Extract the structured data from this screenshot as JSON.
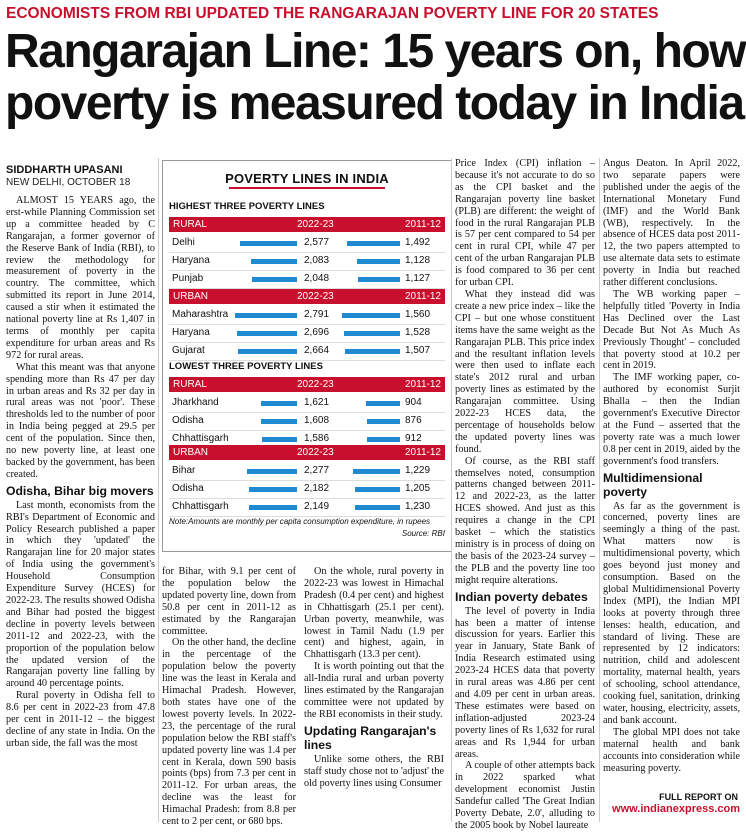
{
  "kicker": "ECONOMISTS FROM RBI UPDATED THE RANGARAJAN POVERTY LINE FOR 20 STATES",
  "headline": [
    "Rangarajan Line: 15 years on, how",
    "poverty is measured today in India"
  ],
  "byline": {
    "author": "SIDDHARTH UPASANI",
    "dateline": "NEW DELHI, OCTOBER 18"
  },
  "table": {
    "title": "POVERTY LINES IN INDIA",
    "highest_label": "HIGHEST THREE POVERTY LINES",
    "lowest_label": "LOWEST THREE POVERTY LINES",
    "col_a": "2022-23",
    "col_b": "2011-12",
    "rural": "RURAL",
    "urban": "URBAN",
    "highest_rural": [
      {
        "state": "Delhi",
        "a": "2,577",
        "b": "1,492",
        "av": 2577
      },
      {
        "state": "Haryana",
        "a": "2,083",
        "b": "1,128",
        "av": 2083
      },
      {
        "state": "Punjab",
        "a": "2,048",
        "b": "1,127",
        "av": 2048
      }
    ],
    "highest_urban": [
      {
        "state": "Maharashtra",
        "a": "2,791",
        "b": "1,560",
        "av": 2791
      },
      {
        "state": "Haryana",
        "a": "2,696",
        "b": "1,528",
        "av": 2696
      },
      {
        "state": "Gujarat",
        "a": "2,664",
        "b": "1,507",
        "av": 2664
      }
    ],
    "lowest_rural": [
      {
        "state": "Jharkhand",
        "a": "1,621",
        "b": "904",
        "av": 1621
      },
      {
        "state": "Odisha",
        "a": "1,608",
        "b": "876",
        "av": 1608
      },
      {
        "state": "Chhattisgarh",
        "a": "1,586",
        "b": "912",
        "av": 1586
      }
    ],
    "lowest_urban": [
      {
        "state": "Bihar",
        "a": "2,277",
        "b": "1,229",
        "av": 2277
      },
      {
        "state": "Odisha",
        "a": "2,182",
        "b": "1,205",
        "av": 2182
      },
      {
        "state": "Chhattisgarh",
        "a": "2,149",
        "b": "1,230",
        "av": 2149
      }
    ],
    "note": "Note:Amounts are monthly per capita consumption expenditure, in rupees",
    "source": "Source: RBI"
  },
  "col1": {
    "p1": "ALMOST 15 YEARS ago, the erst-while Planning Commission set up a committee headed by C Rangarajan, a former governor of the Reserve Bank of India (RBI), to review the methodology for measurement of poverty in the country. The committee, which submitted its report in June 2014, caused a stir when it estimated the national poverty line at Rs 1,407 in terms of monthly per capita expenditure for urban areas and Rs 972 for rural areas.",
    "p2": "What this meant was that anyone spending more than Rs 47 per day in urban areas and Rs 32 per day in rural areas was not 'poor'. These thresholds led to the number of poor in India being pegged at 29.5 per cent of the population. Since then, no new poverty line, at least one backed by the government, has been created.",
    "h1": "Odisha, Bihar big movers",
    "p3": "Last month, economists from the RBI's Department of Economic and Policy Research published a paper in which they 'updated' the Rangarajan line for 20 major states of India using the government's Household Consumption Expenditure Survey (HCES) for 2022-23. The results showed Odisha and Bihar had posted the biggest decline in poverty levels between 2011-12 and 2022-23, with the proportion of the population below the updated version of the Rangarajan poverty line falling by around 40 percentage points.",
    "p4": "Rural poverty in Odisha fell to 8.6 per cent in 2022-23 from 47.8 per cent in 2011-12 – the biggest decline of any state in India. On the urban side, the fall was the most"
  },
  "col2": {
    "p1": "for Bihar, with 9.1 per cent of the population below the updated poverty line, down from 50.8 per cent in 2011-12 as estimated by the Rangarajan committee.",
    "p2": "On the other hand, the decline in the percentage of the population below the poverty line was the least in Kerala and Himachal Pradesh. However, both states have one of the lowest poverty levels. In 2022-23, the percentage of the rural population below the RBI staff's updated poverty line was 1.4 per cent in Kerala, down 590 basis points (bps) from 7.3 per cent in 2011-12. For urban areas, the decline was the least for Himachal Pradesh: from 8.8 per cent to 2 per cent, or 680 bps."
  },
  "col3": {
    "p1": "On the whole, rural poverty in 2022-23 was lowest in Himachal Pradesh (0.4 per cent) and highest in Chhattisgarh (25.1 per cent). Urban poverty, meanwhile, was lowest in Tamil Nadu (1.9 per cent) and highest, again, in Chhattisgarh (13.3 per cent).",
    "p2": "It is worth pointing out that the all-India rural and urban poverty lines estimated by the Rangarajan committee were not updated by the RBI economists in their study.",
    "h1": "Updating Rangarajan's lines",
    "p3": "Unlike some others, the RBI staff study chose not to 'adjust' the old poverty lines using Consumer"
  },
  "col4": {
    "p1": "Price Index (CPI) inflation – because it's not accurate to do so as the CPI basket and the Rangarajan poverty line basket (PLB) are different: the weight of food in the rural Rangarajan PLB is 57 per cent compared to 54 per cent in rural CPI, while 47 per cent of the urban Rangarajan PLB is food compared to 36 per cent for urban CPI.",
    "p2": "What they instead did was create a new price index – like the CPI – but one whose constituent items have the same weight as the Rangarajan PLB. This price index and the resultant inflation levels were then used to inflate each state's 2012 rural and urban poverty lines as estimated by the Rangarajan committee. Using 2022-23 HCES data, the percentage of households below the updated poverty lines was found.",
    "p3": "Of course, as the RBI staff themselves noted, consumption patterns changed between 2011-12 and 2022-23, as the latter HCES showed. And just as this requires a change in the CPI basket – which the statistics ministry is in process of doing on the basis of the 2023-24 survey – the PLB and the poverty line too might require alterations.",
    "h1": "Indian poverty debates",
    "p4": "The level of poverty in India has been a matter of intense discussion for years. Earlier this year in January, State Bank of India Research estimated using 2023-24 HCES data that poverty in rural areas was 4.86 per cent and 4.09 per cent in urban areas. These estimates were based on inflation-adjusted 2023-24 poverty lines of Rs 1,632 for rural areas and Rs 1,944 for urban areas.",
    "p5": "A couple of other attempts back in 2022 sparked what development economist Justin Sandefur called 'The Great Indian Poverty Debate, 2.0', alluding to the 2005 book by Nobel laureate"
  },
  "col5": {
    "p1": "Angus Deaton. In April 2022, two separate papers were published under the aegis of the International Monetary Fund (IMF) and the World Bank (WB), respectively. In the absence of HCES data post 2011-12, the two papers attempted to use alternate data sets to estimate poverty in India but reached rather different conclusions.",
    "p2": "The WB working paper – helpfully titled 'Poverty in India Has Declined over the Last Decade But Not As Much As Previously Thought' – concluded that poverty stood at 10.2 per cent in 2019.",
    "p3": "The IMF working paper, co-authored by economist Surjit Bhalla – then the Indian government's Executive Director at the Fund – asserted that the poverty rate was a much lower 0.8 per cent in 2019, aided by the government's food transfers.",
    "h1": "Multidimensional poverty",
    "p4": "As far as the government is concerned, poverty lines are seemingly a thing of the past. What matters now is multidimensional poverty, which goes beyond just money and consumption. Based on the global Multidimensional Poverty Index (MPI), the Indian MPI looks at poverty through three lenses: health, education, and standard of living. These are represented by 12 indicators: nutrition, child and adolescent mortality, maternal health, years of schooling, school attendance, cooking fuel, sanitation, drinking water, housing, electricity, assets, and bank account.",
    "p5": "The global MPI does not take maternal health and bank accounts into consideration while measuring poverty."
  },
  "footer": {
    "report": "FULL REPORT ON",
    "site": "www.indianexpress.com"
  }
}
